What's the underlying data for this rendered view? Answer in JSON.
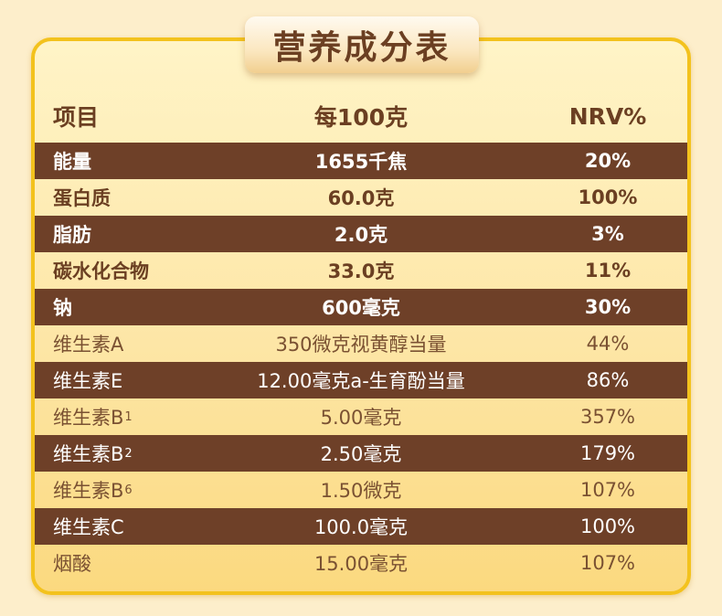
{
  "title": "营养成分表",
  "header": {
    "item": "项目",
    "per100g": "每100克",
    "nrv": "NRV%"
  },
  "rows": [
    {
      "name": "能量",
      "amount": "1655千焦",
      "nrv": "20%"
    },
    {
      "name": "蛋白质",
      "amount": "60.0克",
      "nrv": "100%"
    },
    {
      "name": "脂肪",
      "amount": "2.0克",
      "nrv": "3%"
    },
    {
      "name": "碳水化合物",
      "amount": "33.0克",
      "nrv": "11%"
    },
    {
      "name": "钠",
      "amount": "600毫克",
      "nrv": "30%"
    },
    {
      "name": "维生素A",
      "amount": "350微克视黄醇当量",
      "nrv": "44%"
    },
    {
      "name": "维生素E",
      "amount": "12.00毫克a-生育酚当量",
      "nrv": "86%"
    },
    {
      "name": "维生素B",
      "sub": "1",
      "amount": "5.00毫克",
      "nrv": "357%"
    },
    {
      "name": "维生素B",
      "sub": "2",
      "amount": "2.50毫克",
      "nrv": "179%"
    },
    {
      "name": "维生素B",
      "sub": "6",
      "amount": "1.50微克",
      "nrv": "107%"
    },
    {
      "name": "维生素C",
      "amount": "100.0毫克",
      "nrv": "100%"
    },
    {
      "name": "烟酸",
      "amount": "15.00毫克",
      "nrv": "107%"
    }
  ],
  "colors": {
    "dark_row": "#6e4028",
    "text_brown": "#6b3f22",
    "border_gold": "#f3c21d"
  }
}
